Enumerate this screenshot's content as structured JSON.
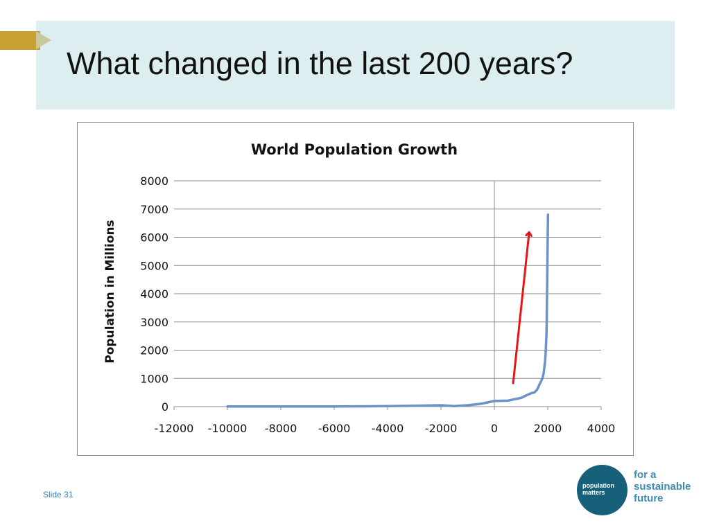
{
  "slide": {
    "title": "What changed in the last 200 years?",
    "slide_number": "Slide 31"
  },
  "logo": {
    "circle_lines": [
      "population",
      "matters"
    ],
    "tagline_lines": [
      "for a",
      "sustainable",
      "future"
    ]
  },
  "colors": {
    "title_band": "#ddeef1",
    "accent_gold": "#c8a032",
    "series_line": "#6b93c9",
    "annotation_arrow": "#e81414",
    "logo_circle": "#17607a",
    "tagline": "#3f8ab2"
  },
  "chart_data": {
    "type": "line",
    "title": "World Population Growth",
    "xlabel": "",
    "ylabel": "Population in Millions",
    "xlim": [
      -12000,
      4000
    ],
    "ylim": [
      0,
      8000
    ],
    "xticks": [
      -12000,
      -10000,
      -8000,
      -6000,
      -4000,
      -2000,
      0,
      2000,
      4000
    ],
    "yticks": [
      0,
      1000,
      2000,
      3000,
      4000,
      5000,
      6000,
      7000,
      8000
    ],
    "grid": "horizontal",
    "legend": "none",
    "series": [
      {
        "x": [
          -10000,
          -8000,
          -6000,
          -5000,
          -4000,
          -3000,
          -2000,
          -1500,
          -1000,
          -500,
          0,
          500,
          1000,
          1200,
          1400,
          1500,
          1600,
          1700,
          1750,
          1800,
          1850,
          1900,
          1920,
          1940,
          1950,
          1960,
          1970,
          1980,
          1990,
          2000,
          2010
        ],
        "y": [
          5,
          5,
          5,
          10,
          20,
          30,
          50,
          20,
          50,
          100,
          200,
          210,
          310,
          400,
          480,
          500,
          600,
          800,
          900,
          1000,
          1200,
          1600,
          1860,
          2300,
          2500,
          3000,
          3700,
          4400,
          5300,
          6100,
          6800
        ]
      }
    ],
    "annotations": [
      {
        "type": "arrow",
        "from": [
          700,
          800
        ],
        "to": [
          1300,
          6150
        ]
      }
    ]
  }
}
